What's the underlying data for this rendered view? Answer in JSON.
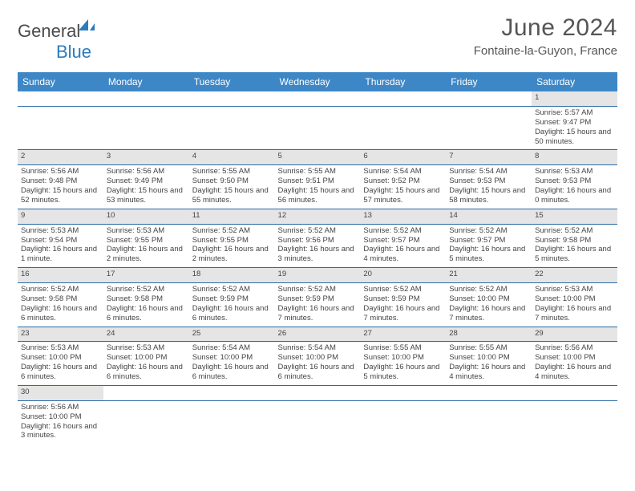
{
  "brand": {
    "name_part1": "General",
    "name_part2": "Blue"
  },
  "title": "June 2024",
  "location": "Fontaine-la-Guyon, France",
  "colors": {
    "header_bg": "#3d87c7",
    "header_text": "#ffffff",
    "daynum_bg": "#e5e5e5",
    "row_border": "#2b6aa6",
    "brand_blue": "#2b7bbf",
    "text": "#444444"
  },
  "weekdays": [
    "Sunday",
    "Monday",
    "Tuesday",
    "Wednesday",
    "Thursday",
    "Friday",
    "Saturday"
  ],
  "weeks": [
    [
      null,
      null,
      null,
      null,
      null,
      null,
      {
        "d": "1",
        "sr": "5:57 AM",
        "ss": "9:47 PM",
        "dl": "15 hours and 50 minutes."
      }
    ],
    [
      {
        "d": "2",
        "sr": "5:56 AM",
        "ss": "9:48 PM",
        "dl": "15 hours and 52 minutes."
      },
      {
        "d": "3",
        "sr": "5:56 AM",
        "ss": "9:49 PM",
        "dl": "15 hours and 53 minutes."
      },
      {
        "d": "4",
        "sr": "5:55 AM",
        "ss": "9:50 PM",
        "dl": "15 hours and 55 minutes."
      },
      {
        "d": "5",
        "sr": "5:55 AM",
        "ss": "9:51 PM",
        "dl": "15 hours and 56 minutes."
      },
      {
        "d": "6",
        "sr": "5:54 AM",
        "ss": "9:52 PM",
        "dl": "15 hours and 57 minutes."
      },
      {
        "d": "7",
        "sr": "5:54 AM",
        "ss": "9:53 PM",
        "dl": "15 hours and 58 minutes."
      },
      {
        "d": "8",
        "sr": "5:53 AM",
        "ss": "9:53 PM",
        "dl": "16 hours and 0 minutes."
      }
    ],
    [
      {
        "d": "9",
        "sr": "5:53 AM",
        "ss": "9:54 PM",
        "dl": "16 hours and 1 minute."
      },
      {
        "d": "10",
        "sr": "5:53 AM",
        "ss": "9:55 PM",
        "dl": "16 hours and 2 minutes."
      },
      {
        "d": "11",
        "sr": "5:52 AM",
        "ss": "9:55 PM",
        "dl": "16 hours and 2 minutes."
      },
      {
        "d": "12",
        "sr": "5:52 AM",
        "ss": "9:56 PM",
        "dl": "16 hours and 3 minutes."
      },
      {
        "d": "13",
        "sr": "5:52 AM",
        "ss": "9:57 PM",
        "dl": "16 hours and 4 minutes."
      },
      {
        "d": "14",
        "sr": "5:52 AM",
        "ss": "9:57 PM",
        "dl": "16 hours and 5 minutes."
      },
      {
        "d": "15",
        "sr": "5:52 AM",
        "ss": "9:58 PM",
        "dl": "16 hours and 5 minutes."
      }
    ],
    [
      {
        "d": "16",
        "sr": "5:52 AM",
        "ss": "9:58 PM",
        "dl": "16 hours and 6 minutes."
      },
      {
        "d": "17",
        "sr": "5:52 AM",
        "ss": "9:58 PM",
        "dl": "16 hours and 6 minutes."
      },
      {
        "d": "18",
        "sr": "5:52 AM",
        "ss": "9:59 PM",
        "dl": "16 hours and 6 minutes."
      },
      {
        "d": "19",
        "sr": "5:52 AM",
        "ss": "9:59 PM",
        "dl": "16 hours and 7 minutes."
      },
      {
        "d": "20",
        "sr": "5:52 AM",
        "ss": "9:59 PM",
        "dl": "16 hours and 7 minutes."
      },
      {
        "d": "21",
        "sr": "5:52 AM",
        "ss": "10:00 PM",
        "dl": "16 hours and 7 minutes."
      },
      {
        "d": "22",
        "sr": "5:53 AM",
        "ss": "10:00 PM",
        "dl": "16 hours and 7 minutes."
      }
    ],
    [
      {
        "d": "23",
        "sr": "5:53 AM",
        "ss": "10:00 PM",
        "dl": "16 hours and 6 minutes."
      },
      {
        "d": "24",
        "sr": "5:53 AM",
        "ss": "10:00 PM",
        "dl": "16 hours and 6 minutes."
      },
      {
        "d": "25",
        "sr": "5:54 AM",
        "ss": "10:00 PM",
        "dl": "16 hours and 6 minutes."
      },
      {
        "d": "26",
        "sr": "5:54 AM",
        "ss": "10:00 PM",
        "dl": "16 hours and 6 minutes."
      },
      {
        "d": "27",
        "sr": "5:55 AM",
        "ss": "10:00 PM",
        "dl": "16 hours and 5 minutes."
      },
      {
        "d": "28",
        "sr": "5:55 AM",
        "ss": "10:00 PM",
        "dl": "16 hours and 4 minutes."
      },
      {
        "d": "29",
        "sr": "5:56 AM",
        "ss": "10:00 PM",
        "dl": "16 hours and 4 minutes."
      }
    ],
    [
      {
        "d": "30",
        "sr": "5:56 AM",
        "ss": "10:00 PM",
        "dl": "16 hours and 3 minutes."
      },
      null,
      null,
      null,
      null,
      null,
      null
    ]
  ],
  "labels": {
    "sunrise": "Sunrise:",
    "sunset": "Sunset:",
    "daylight": "Daylight:"
  }
}
